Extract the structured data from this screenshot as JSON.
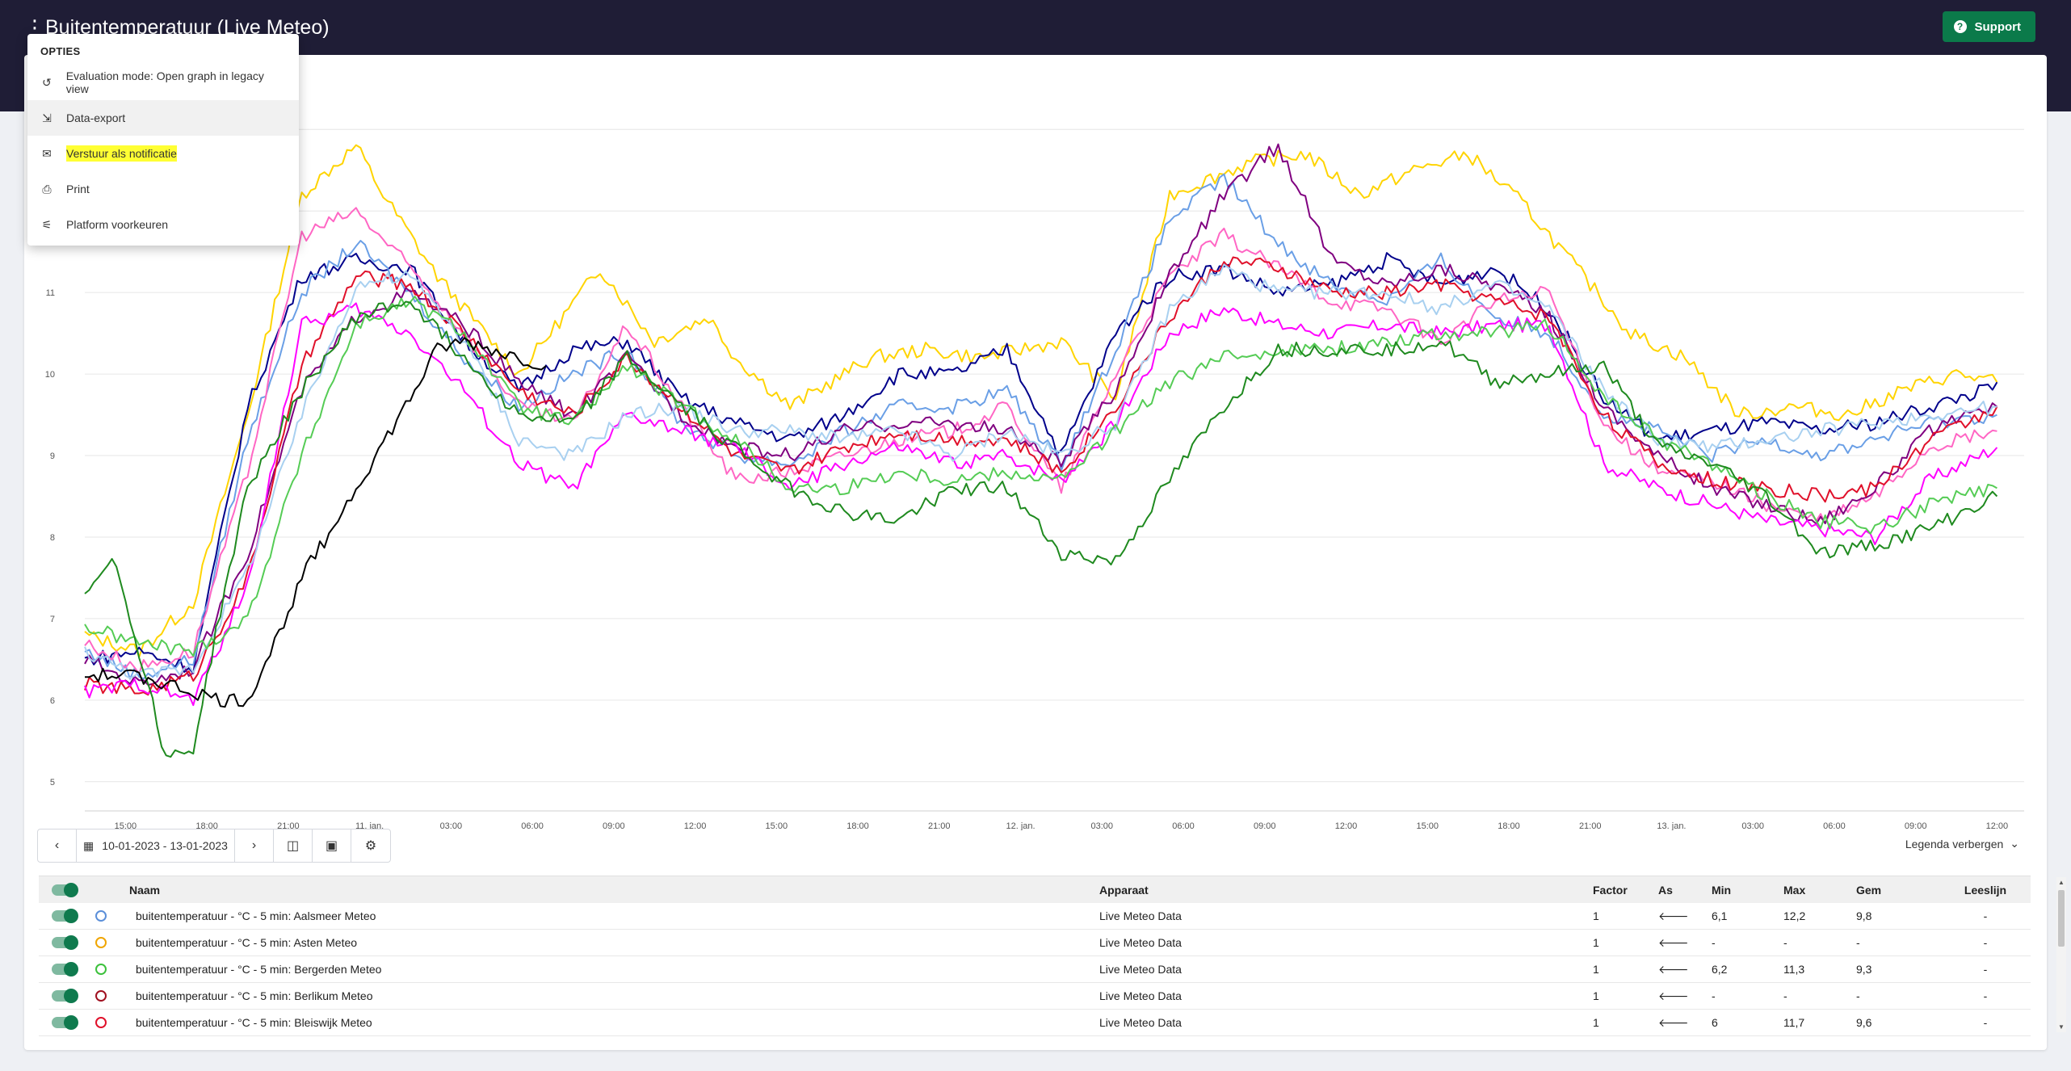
{
  "header": {
    "title": "Buitentemperatuur (Live Meteo)",
    "support_label": "Support"
  },
  "menu": {
    "title": "OPTIES",
    "items": [
      {
        "label": "Evaluation mode: Open graph in legacy view",
        "icon": "history-icon"
      },
      {
        "label": "Data-export",
        "icon": "export-icon"
      },
      {
        "label": "Verstuur als notificatie",
        "icon": "inbox-icon",
        "highlighted": true
      },
      {
        "label": "Print",
        "icon": "printer-icon"
      },
      {
        "label": "Platform voorkeuren",
        "icon": "tune-icon"
      }
    ]
  },
  "controls": {
    "date_range": "10-01-2023 - 13-01-2023",
    "legend_toggle": "Legenda verbergen"
  },
  "table": {
    "headers": {
      "name": "Naam",
      "device": "Apparaat",
      "factor": "Factor",
      "axis": "As",
      "min": "Min",
      "max": "Max",
      "avg": "Gem",
      "readline": "Leeslijn"
    },
    "rows": [
      {
        "name": "buitentemperatuur - °C - 5 min: Aalsmeer Meteo",
        "device": "Live Meteo Data",
        "factor": "1",
        "axis": "🡐",
        "min": "6,1",
        "max": "12,2",
        "avg": "9,8",
        "readline": "-",
        "color": "#5b8fd9"
      },
      {
        "name": "buitentemperatuur - °C - 5 min: Asten Meteo",
        "device": "Live Meteo Data",
        "factor": "1",
        "axis": "🡐",
        "min": "-",
        "max": "-",
        "avg": "-",
        "readline": "-",
        "color": "#f0a500"
      },
      {
        "name": "buitentemperatuur - °C - 5 min: Bergerden Meteo",
        "device": "Live Meteo Data",
        "factor": "1",
        "axis": "🡐",
        "min": "6,2",
        "max": "11,3",
        "avg": "9,3",
        "readline": "-",
        "color": "#3cc13c"
      },
      {
        "name": "buitentemperatuur - °C - 5 min: Berlikum Meteo",
        "device": "Live Meteo Data",
        "factor": "1",
        "axis": "🡐",
        "min": "-",
        "max": "-",
        "avg": "-",
        "readline": "-",
        "color": "#a01020"
      },
      {
        "name": "buitentemperatuur - °C - 5 min: Bleiswijk Meteo",
        "device": "Live Meteo Data",
        "factor": "1",
        "axis": "🡐",
        "min": "6",
        "max": "11,7",
        "avg": "9,6",
        "readline": "-",
        "color": "#e0102a"
      }
    ]
  },
  "chart_data": {
    "type": "line",
    "title": "",
    "xlabel": "",
    "ylabel": "",
    "ylim": [
      4.8,
      13.3
    ],
    "y_ticks": [
      5,
      6,
      7,
      8,
      9,
      10,
      11
    ],
    "x_ticks": [
      "15:00",
      "18:00",
      "21:00",
      "11. jan.",
      "03:00",
      "06:00",
      "09:00",
      "12:00",
      "15:00",
      "18:00",
      "21:00",
      "12. jan.",
      "03:00",
      "06:00",
      "09:00",
      "12:00",
      "15:00",
      "18:00",
      "21:00",
      "13. jan.",
      "03:00",
      "06:00",
      "09:00",
      "12:00"
    ],
    "x_start_hours": 13.5,
    "x_step_hours": 3,
    "grid": true,
    "legend": "table below chart",
    "series": [
      {
        "color": "#ffd400",
        "x": [
          0,
          2,
          4,
          6,
          8,
          10,
          11,
          13,
          16,
          19,
          21,
          23,
          24,
          26,
          29,
          31,
          33,
          36,
          38,
          40,
          43,
          45,
          47,
          49,
          51,
          53,
          55,
          57,
          59,
          61,
          63,
          65,
          67,
          69,
          70.5
        ],
        "y": [
          6.8,
          6.6,
          7.2,
          9.5,
          12.2,
          12.8,
          12.2,
          11.2,
          10.0,
          11.3,
          10.4,
          10.7,
          10.2,
          9.6,
          10.2,
          10.3,
          10.2,
          10.4,
          9.7,
          12.2,
          12.6,
          12.7,
          12.2,
          12.5,
          12.7,
          12.1,
          11.3,
          10.5,
          10.2,
          9.5,
          9.6,
          9.5,
          9.8,
          10.0,
          9.9
        ]
      },
      {
        "color": "#00008b",
        "x": [
          0,
          2,
          4,
          6,
          8,
          10,
          12,
          14,
          16,
          18,
          20,
          22,
          24,
          26,
          28,
          30,
          32,
          34,
          36,
          38,
          40,
          42,
          44,
          46,
          48,
          50,
          52,
          54,
          56,
          58,
          60,
          62,
          64,
          66,
          68,
          70,
          70.5
        ],
        "y": [
          6.5,
          6.6,
          6.4,
          9.6,
          11.2,
          11.4,
          11.3,
          10.4,
          9.8,
          10.3,
          10.4,
          9.7,
          9.4,
          9.2,
          9.5,
          10.0,
          10.0,
          10.3,
          9.0,
          10.5,
          11.2,
          11.3,
          11.0,
          11.1,
          11.4,
          11.1,
          11.3,
          10.8,
          9.7,
          9.2,
          9.3,
          9.4,
          9.3,
          9.4,
          9.6,
          9.8,
          9.9
        ]
      },
      {
        "color": "#6a9fe6",
        "x": [
          0,
          2,
          4,
          6,
          8,
          10,
          12,
          14,
          16,
          18,
          20,
          22,
          24,
          26,
          28,
          30,
          32,
          34,
          36,
          38,
          40,
          42,
          44,
          46,
          48,
          50,
          52,
          54,
          56,
          58,
          60,
          62,
          64,
          66,
          68,
          70.5
        ],
        "y": [
          6.6,
          6.3,
          6.5,
          9.2,
          11.0,
          11.6,
          11.0,
          10.2,
          9.6,
          10.0,
          10.3,
          9.4,
          9.0,
          8.9,
          9.3,
          9.6,
          9.6,
          9.8,
          8.9,
          10.3,
          11.9,
          12.4,
          11.6,
          11.1,
          10.9,
          11.4,
          10.7,
          10.5,
          9.5,
          9.3,
          9.0,
          9.2,
          9.0,
          9.2,
          9.4,
          9.5
        ]
      },
      {
        "color": "#ff66c4",
        "x": [
          0,
          2,
          4,
          6,
          8,
          10,
          12,
          14,
          16,
          18,
          20,
          22,
          24,
          26,
          28,
          30,
          32,
          34,
          36,
          38,
          40,
          42,
          44,
          46,
          48,
          50,
          52,
          54,
          56,
          58,
          60,
          62,
          64,
          66,
          68,
          70.5
        ],
        "y": [
          6.7,
          6.4,
          6.6,
          8.8,
          11.7,
          12.0,
          11.3,
          10.5,
          9.6,
          9.4,
          10.6,
          9.6,
          8.7,
          8.8,
          9.0,
          9.2,
          9.3,
          9.6,
          8.6,
          10.0,
          11.2,
          11.7,
          11.3,
          10.9,
          10.8,
          10.4,
          10.9,
          11.0,
          9.4,
          8.8,
          8.7,
          8.4,
          8.2,
          8.5,
          9.1,
          9.3
        ]
      },
      {
        "color": "#800080",
        "x": [
          0,
          2,
          4,
          6,
          8,
          10,
          12,
          14,
          16,
          18,
          20,
          22,
          24,
          26,
          28,
          30,
          32,
          34,
          36,
          38,
          40,
          42,
          44,
          46,
          48,
          50,
          52,
          54,
          56,
          58,
          60,
          62,
          64,
          66,
          68,
          70.5
        ],
        "y": [
          6.5,
          6.2,
          6.4,
          7.8,
          9.8,
          10.7,
          11.0,
          10.6,
          9.9,
          9.5,
          10.2,
          9.5,
          9.1,
          9.0,
          9.3,
          9.4,
          9.4,
          9.3,
          8.9,
          9.8,
          11.2,
          12.2,
          12.8,
          11.4,
          11.1,
          11.3,
          11.1,
          10.7,
          9.6,
          9.0,
          8.6,
          8.4,
          8.2,
          8.6,
          9.3,
          9.6
        ]
      },
      {
        "color": "#e0102a",
        "x": [
          0,
          2,
          4,
          6,
          8,
          10,
          12,
          14,
          16,
          18,
          20,
          22,
          24,
          26,
          28,
          30,
          32,
          34,
          36,
          38,
          40,
          42,
          44,
          46,
          48,
          50,
          52,
          54,
          56,
          58,
          60,
          62,
          64,
          66,
          68,
          70.5
        ],
        "y": [
          6.2,
          6.1,
          6.3,
          7.5,
          10.1,
          11.2,
          11.1,
          10.5,
          9.8,
          9.5,
          10.2,
          9.6,
          9.0,
          8.8,
          9.1,
          9.3,
          9.2,
          9.2,
          8.8,
          9.6,
          10.7,
          11.4,
          11.3,
          11.0,
          11.0,
          11.1,
          10.9,
          10.7,
          9.5,
          8.9,
          8.7,
          8.6,
          8.5,
          8.6,
          9.2,
          9.6
        ]
      },
      {
        "color": "#ff00ff",
        "x": [
          0,
          2,
          4,
          6,
          8,
          10,
          12,
          14,
          16,
          18,
          20,
          22,
          24,
          26,
          28,
          30,
          32,
          34,
          36,
          38,
          40,
          42,
          44,
          46,
          48,
          50,
          52,
          54,
          56,
          58,
          60,
          62,
          64,
          66,
          68,
          70.5
        ],
        "y": [
          6.1,
          6.2,
          6.0,
          7.4,
          10.6,
          10.8,
          10.5,
          9.8,
          8.9,
          8.6,
          9.5,
          9.3,
          9.1,
          8.6,
          8.9,
          9.1,
          8.9,
          9.0,
          8.7,
          9.4,
          10.5,
          10.8,
          10.6,
          10.5,
          10.6,
          10.5,
          10.6,
          10.6,
          8.9,
          8.6,
          8.4,
          8.2,
          8.1,
          8.0,
          8.7,
          9.1
        ]
      },
      {
        "color": "#a8d0f0",
        "x": [
          0,
          2,
          4,
          6,
          8,
          10,
          12,
          14,
          16,
          18,
          20,
          22,
          24,
          26,
          28,
          30,
          32,
          34,
          36,
          38,
          40,
          42,
          44,
          46,
          48,
          50,
          52,
          54,
          56,
          58,
          60,
          62,
          64,
          66,
          68,
          70.5
        ],
        "y": [
          6.6,
          6.3,
          6.4,
          7.6,
          9.5,
          11.1,
          11.2,
          10.4,
          9.2,
          9.0,
          9.5,
          9.6,
          9.3,
          9.3,
          9.2,
          9.3,
          9.0,
          9.3,
          9.0,
          9.4,
          10.8,
          11.3,
          11.0,
          11.0,
          11.0,
          10.8,
          11.1,
          10.8,
          9.8,
          9.2,
          9.1,
          9.2,
          9.3,
          9.4,
          9.5,
          9.6
        ]
      },
      {
        "color": "#55cc55",
        "x": [
          0,
          2,
          4,
          6,
          8,
          10,
          12,
          14,
          16,
          18,
          20,
          22,
          24,
          26,
          28,
          30,
          32,
          34,
          36,
          38,
          40,
          42,
          44,
          46,
          48,
          50,
          52,
          54,
          56,
          58,
          60,
          62,
          64,
          66,
          68,
          70.5
        ],
        "y": [
          6.9,
          6.7,
          6.6,
          7.0,
          9.0,
          10.6,
          10.9,
          10.5,
          9.6,
          9.4,
          10.1,
          9.6,
          9.2,
          8.6,
          8.6,
          8.8,
          8.7,
          8.8,
          8.7,
          9.3,
          9.9,
          10.2,
          10.3,
          10.3,
          10.4,
          10.5,
          10.5,
          10.6,
          9.7,
          9.2,
          8.9,
          8.5,
          8.2,
          8.1,
          8.4,
          8.6
        ]
      },
      {
        "color": "#1f8a1f",
        "x": [
          0,
          1,
          2,
          3,
          4,
          5,
          6,
          8,
          10,
          12,
          14,
          16,
          18,
          20,
          22,
          24,
          26,
          28,
          30,
          32,
          34,
          36,
          38,
          40,
          42,
          44,
          46,
          48,
          50,
          52,
          54,
          56,
          58,
          60,
          62,
          64,
          66,
          68,
          70.5
        ],
        "y": [
          7.3,
          7.8,
          6.6,
          5.3,
          5.4,
          7.1,
          8.6,
          9.8,
          10.7,
          10.9,
          10.2,
          9.5,
          9.4,
          10.2,
          9.6,
          9.1,
          8.6,
          8.3,
          8.2,
          8.6,
          8.6,
          7.8,
          7.7,
          8.7,
          9.6,
          10.3,
          10.3,
          10.3,
          10.4,
          9.9,
          10.0,
          10.1,
          9.1,
          8.9,
          8.5,
          7.8,
          7.9,
          8.1,
          8.5
        ]
      },
      {
        "color": "#000000",
        "x": [
          0,
          2,
          4,
          5,
          6,
          7,
          8,
          10,
          12,
          13,
          14,
          15,
          16,
          17
        ],
        "y": [
          6.3,
          6.3,
          6.1,
          6.0,
          6.0,
          6.7,
          7.5,
          8.6,
          9.7,
          10.3,
          10.4,
          10.3,
          10.2,
          10.1
        ]
      }
    ]
  }
}
